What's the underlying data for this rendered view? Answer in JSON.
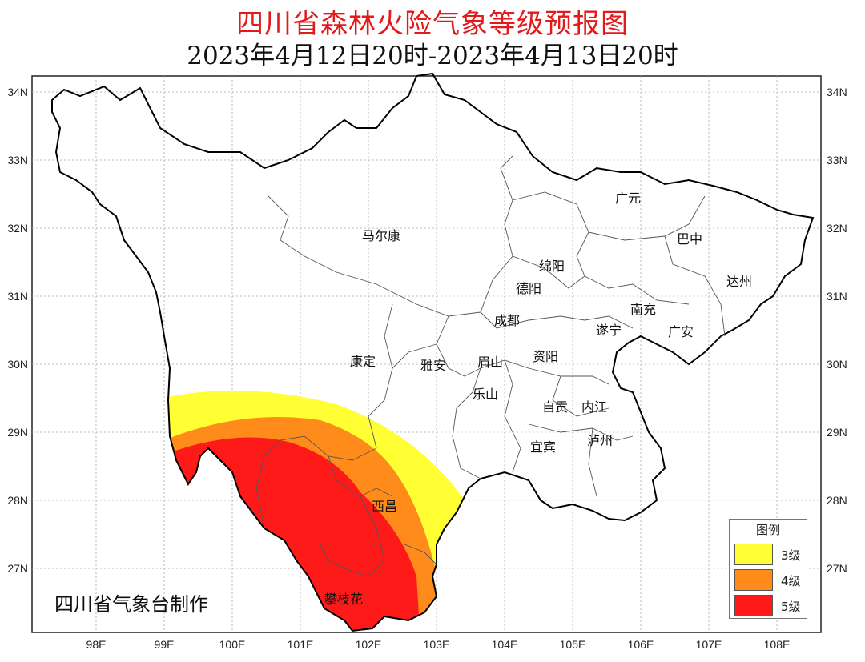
{
  "title": "四川省森林火险气象等级预报图",
  "subtitle": "2023年4月12日20时-2023年4月13日20时",
  "credit": "四川省气象台制作",
  "axes": {
    "lat_labels": [
      "34N",
      "33N",
      "32N",
      "31N",
      "30N",
      "29N",
      "28N",
      "27N"
    ],
    "lon_labels": [
      "98E",
      "99E",
      "100E",
      "101E",
      "102E",
      "103E",
      "104E",
      "105E",
      "106E",
      "107E",
      "108E"
    ]
  },
  "cities": [
    "广元",
    "巴中",
    "马尔康",
    "绵阳",
    "德阳",
    "达州",
    "南充",
    "成都",
    "遂宁",
    "广安",
    "康定",
    "雅安",
    "眉山",
    "资阳",
    "乐山",
    "自贡",
    "内江",
    "泸州",
    "宜宾",
    "西昌",
    "攀枝花"
  ],
  "legend": {
    "title": "图例",
    "items": [
      {
        "label": "3级",
        "color": "#ffff33"
      },
      {
        "label": "4级",
        "color": "#ff8c1a"
      },
      {
        "label": "5级",
        "color": "#ff1a1a"
      }
    ]
  },
  "colors": {
    "level3": "#ffff33",
    "level4": "#ff8c1a",
    "level5": "#ff1a1a"
  }
}
